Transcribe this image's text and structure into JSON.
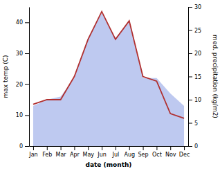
{
  "chart_data": {
    "type": "area",
    "xlabel": "date (month)",
    "ylabel": "max temp (C)",
    "y2label": "med. precipitation (kg/m2)",
    "categories": [
      "Jan",
      "Feb",
      "Mar",
      "Apr",
      "May",
      "Jun",
      "Jul",
      "Aug",
      "Sep",
      "Oct",
      "Nov",
      "Dec"
    ],
    "series": [
      {
        "type": "area",
        "color": "#bec9f0",
        "values": [
          13,
          15,
          16,
          22,
          35,
          43,
          35,
          40,
          22,
          22,
          17,
          13
        ]
      },
      {
        "type": "line",
        "color": "#b03030",
        "axis": "y2",
        "values": [
          9,
          10,
          10,
          15,
          23,
          29,
          23,
          27,
          15,
          14,
          7,
          6
        ]
      }
    ],
    "ylim": [
      0,
      45
    ],
    "yticks": [
      0,
      10,
      20,
      30,
      40
    ],
    "y2lim": [
      0,
      30
    ],
    "y2ticks": [
      0,
      5,
      10,
      15,
      20,
      25,
      30
    ]
  }
}
